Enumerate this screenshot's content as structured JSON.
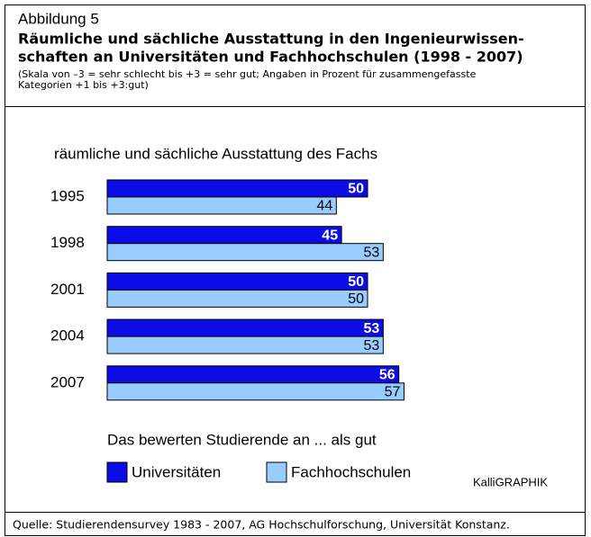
{
  "header": {
    "label": "Abbildung 5",
    "title_lines": [
      "Räumliche und sächliche Ausstattung in den Ingenieurwissen-",
      "schaften an Universitäten und Fachhochschulen (1998 - 2007)"
    ],
    "note_lines": [
      "(Skala von –3 = sehr schlecht bis +3 = sehr gut; Angaben in Prozent für zusammengefasste",
      "Kategorien +1 bis +3:gut)"
    ]
  },
  "chart_data": {
    "type": "bar",
    "orientation": "horizontal",
    "title": "räumliche und sächliche Ausstattung des Fachs",
    "categories": [
      "1995",
      "1998",
      "2001",
      "2004",
      "2007"
    ],
    "series": [
      {
        "name": "Universitäten",
        "color": "#0c0ce6",
        "values": [
          50,
          45,
          50,
          53,
          56
        ]
      },
      {
        "name": "Fachhochschulen",
        "color": "#99ccff",
        "values": [
          44,
          53,
          50,
          53,
          57
        ]
      }
    ],
    "caption": "Das bewerten Studierende an ... als gut",
    "credit": "KalliGRAPHIK"
  },
  "footer": {
    "source": "Quelle: Studierendensurvey 1983 - 2007, AG Hochschulforschung, Universität Konstanz."
  }
}
